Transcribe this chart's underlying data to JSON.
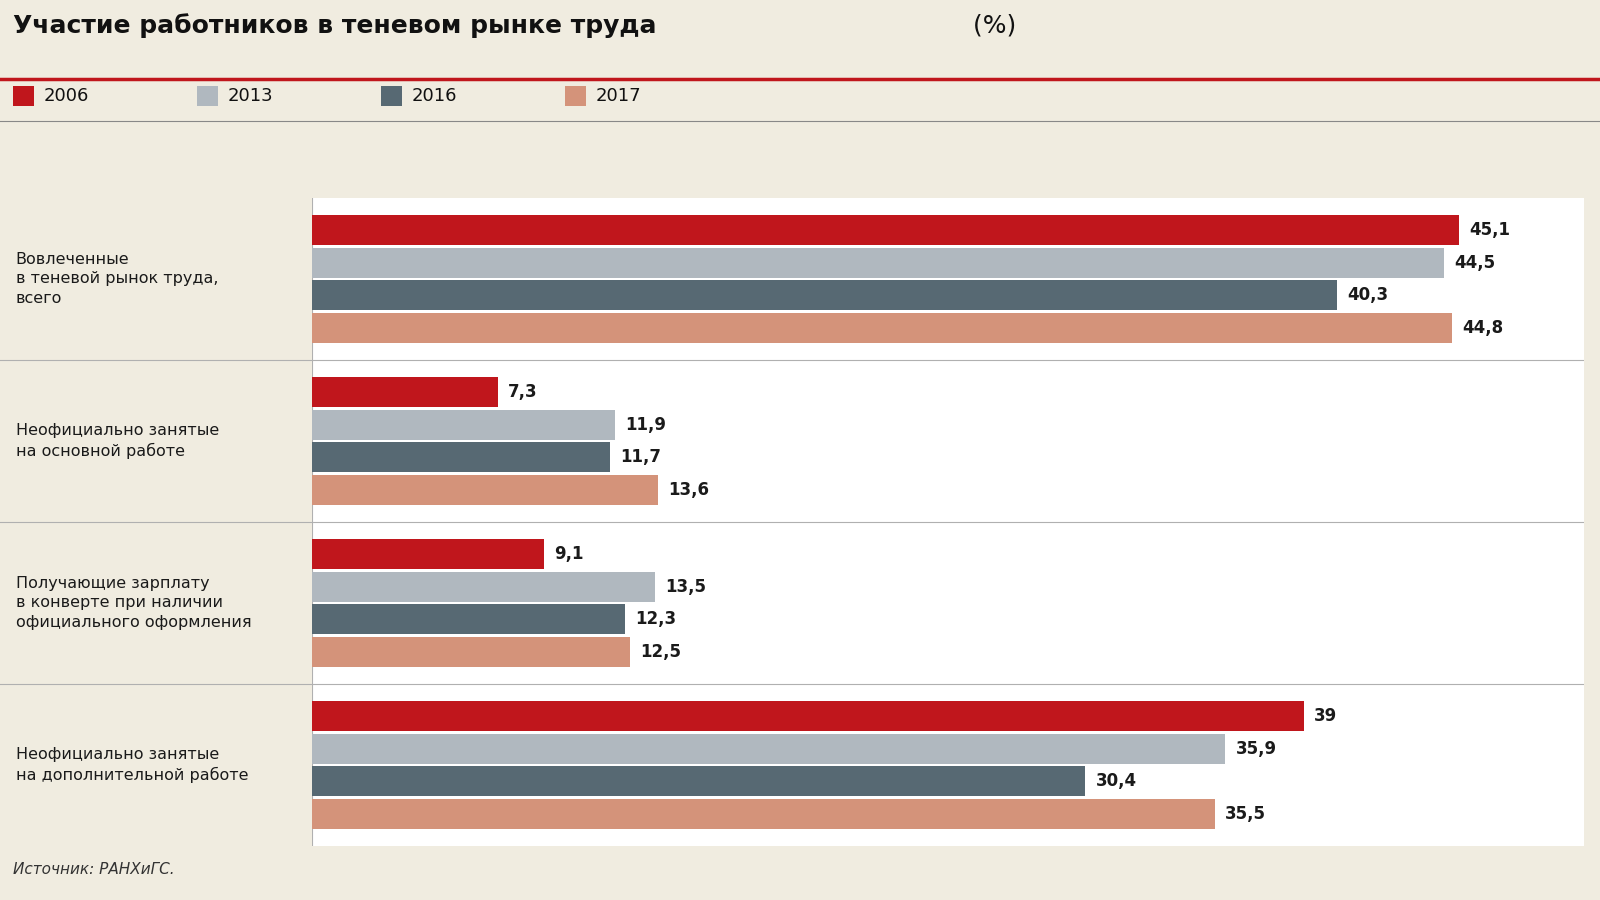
{
  "title_bold": "Участие работников в теневом рынке труда",
  "title_paren": " (%)",
  "source": "Источник: РАНХиГС.",
  "bg_color": "#f0ece0",
  "bar_area_bg": "#ffffff",
  "years": [
    "2006",
    "2013",
    "2016",
    "2017"
  ],
  "colors": [
    "#c0161c",
    "#b0b8bf",
    "#576973",
    "#d4937a"
  ],
  "categories": [
    "Вовлеченные\nв теневой рынок труда,\nвсего",
    "Неофициально занятые\nна основной работе",
    "Получающие зарплату\nв конверте при наличии\nофициального оформления",
    "Неофициально занятые\nна дополнительной работе"
  ],
  "values": [
    [
      45.1,
      44.5,
      40.3,
      44.8
    ],
    [
      7.3,
      11.9,
      11.7,
      13.6
    ],
    [
      9.1,
      13.5,
      12.3,
      12.5
    ],
    [
      39.0,
      35.9,
      30.4,
      35.5
    ]
  ],
  "label_values": [
    [
      "45,1",
      "44,5",
      "40,3",
      "44,8"
    ],
    [
      "7,3",
      "11,9",
      "11,7",
      "13,6"
    ],
    [
      "9,1",
      "13,5",
      "12,3",
      "12,5"
    ],
    [
      "39",
      "35,9",
      "30,4",
      "35,5"
    ]
  ],
  "bar_height": 0.16,
  "bar_gap": 0.015,
  "group_padding": 0.18,
  "xlim": [
    0,
    50
  ],
  "label_fontsize": 11.5,
  "value_fontsize": 12,
  "title_fontsize": 18,
  "legend_fontsize": 13,
  "source_fontsize": 11
}
